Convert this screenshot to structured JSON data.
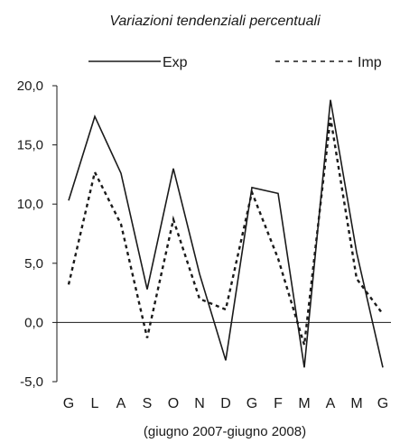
{
  "chart_data": {
    "type": "line",
    "title": "Variazioni tendenziali percentuali",
    "xlabel": "(giugno 2007-giugno 2008)",
    "ylabel": "",
    "categories": [
      "G",
      "L",
      "A",
      "S",
      "O",
      "N",
      "D",
      "G",
      "F",
      "M",
      "A",
      "M",
      "G"
    ],
    "series": [
      {
        "name": "Exp",
        "style": "solid",
        "values": [
          10.3,
          17.4,
          12.6,
          2.8,
          13.0,
          4.1,
          -3.2,
          11.4,
          10.9,
          -3.8,
          18.8,
          5.9,
          -3.8
        ]
      },
      {
        "name": "Imp",
        "style": "dashed",
        "values": [
          3.2,
          12.7,
          8.3,
          -1.3,
          8.7,
          2.0,
          1.1,
          11.0,
          5.4,
          -1.9,
          17.3,
          3.7,
          0.7
        ]
      }
    ],
    "ylim": [
      -5,
      20
    ],
    "yticks": [
      20,
      15,
      10,
      5,
      0,
      -5
    ],
    "ytick_labels": [
      "20,0",
      "15,0",
      "10,0",
      "5,0",
      "0,0",
      "-5,0"
    ],
    "grid": false,
    "legend_position": "top",
    "line_color": "#1a1a1a"
  }
}
